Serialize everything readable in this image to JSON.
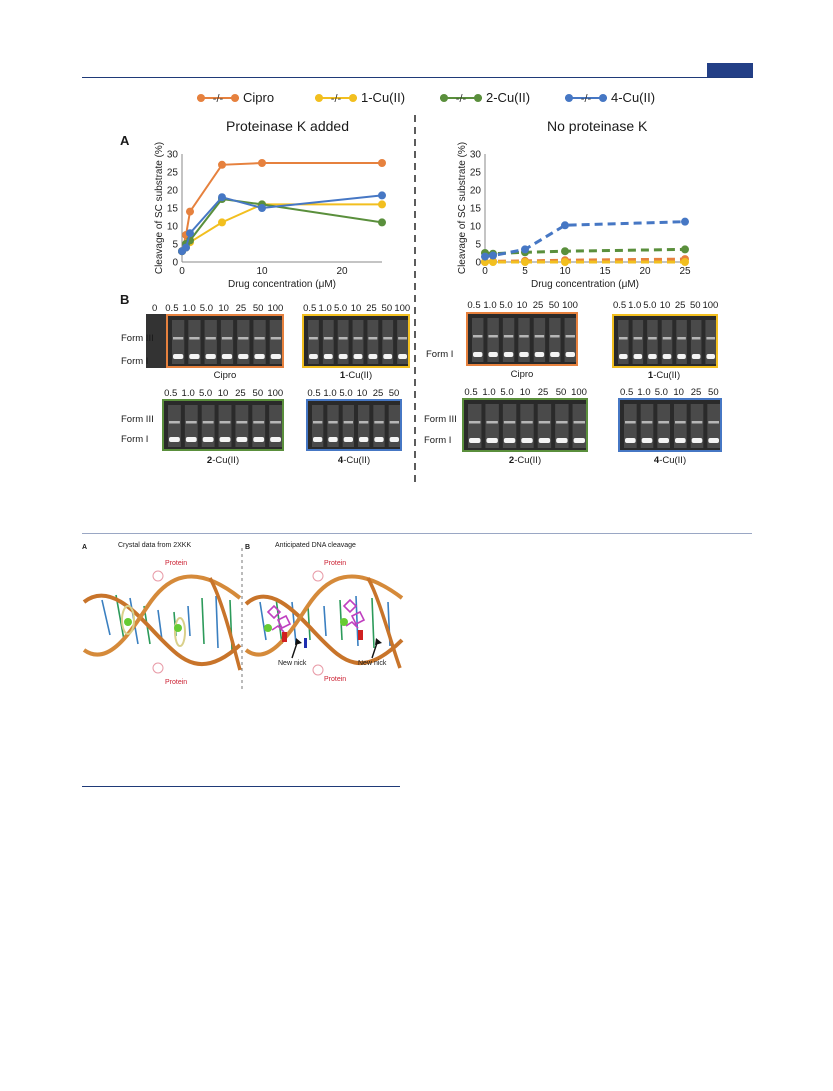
{
  "legend": [
    {
      "name": "Cipro",
      "color": "#e6813e"
    },
    {
      "name": "1-Cu(II)",
      "color": "#f2bf1f"
    },
    {
      "name": "2-Cu(II)",
      "color": "#5a8f3c"
    },
    {
      "name": "4-Cu(II)",
      "color": "#4677c4"
    }
  ],
  "legend_marker": "-/-",
  "panelA": {
    "letter": "A",
    "left_title": "Proteinase K added",
    "right_title": "No proteinase K"
  },
  "panelB": {
    "letter": "B"
  },
  "chart_data": [
    {
      "type": "line",
      "title": "Proteinase K added",
      "xlabel": "Drug concentration (μM)",
      "ylabel": "Cleavage of SC substrate (%)",
      "xlim": [
        0,
        25
      ],
      "ylim": [
        0,
        30
      ],
      "xticks": [
        0,
        10,
        20
      ],
      "yticks": [
        0,
        5,
        10,
        15,
        20,
        25,
        30
      ],
      "line_style": "solid",
      "series": [
        {
          "name": "Cipro",
          "color": "#e6813e",
          "x": [
            0,
            0.5,
            1,
            5,
            10,
            25
          ],
          "y": [
            3,
            7.5,
            14,
            27,
            27.5,
            27.5
          ]
        },
        {
          "name": "1-Cu(II)",
          "color": "#f2bf1f",
          "x": [
            0,
            0.5,
            1,
            5,
            10,
            25
          ],
          "y": [
            3,
            4,
            5.5,
            11,
            16,
            16
          ]
        },
        {
          "name": "2-Cu(II)",
          "color": "#5a8f3c",
          "x": [
            0,
            0.5,
            1,
            5,
            10,
            25
          ],
          "y": [
            3,
            5,
            6,
            17.5,
            16,
            11
          ]
        },
        {
          "name": "4-Cu(II)",
          "color": "#4677c4",
          "x": [
            0,
            0.5,
            1,
            5,
            10,
            25
          ],
          "y": [
            3,
            4,
            8,
            18,
            15,
            18.5
          ]
        }
      ]
    },
    {
      "type": "line",
      "title": "No proteinase K",
      "xlabel": "Drug concentration (μM)",
      "ylabel": "Cleavage of SC substrate (%)",
      "xlim": [
        0,
        25
      ],
      "ylim": [
        0,
        30
      ],
      "xticks": [
        0,
        5,
        10,
        15,
        20,
        25
      ],
      "yticks": [
        0,
        5,
        10,
        15,
        20,
        25,
        30
      ],
      "line_style": "dashed",
      "series": [
        {
          "name": "Cipro",
          "color": "#e6813e",
          "x": [
            0,
            1,
            5,
            10,
            25
          ],
          "y": [
            0,
            0.2,
            0.3,
            0.5,
            0.8
          ]
        },
        {
          "name": "1-Cu(II)",
          "color": "#f2bf1f",
          "x": [
            0,
            1,
            5,
            10,
            25
          ],
          "y": [
            0,
            0,
            0,
            0,
            0
          ]
        },
        {
          "name": "2-Cu(II)",
          "color": "#5a8f3c",
          "x": [
            0,
            1,
            5,
            10,
            25
          ],
          "y": [
            2.5,
            2.3,
            2.7,
            3,
            3.5
          ]
        },
        {
          "name": "4-Cu(II)",
          "color": "#4677c4",
          "x": [
            0,
            1,
            5,
            10,
            25
          ],
          "y": [
            1.5,
            1.8,
            3.5,
            10.2,
            11.2
          ]
        }
      ]
    }
  ],
  "gels": [
    {
      "id": "cipro-pk",
      "lanes": [
        "0",
        "0.5",
        "1.0",
        "5.0",
        "10",
        "25",
        "50",
        "100"
      ],
      "forms": [
        "Form III",
        "Form I"
      ],
      "caption_bold": "",
      "caption_rest": "Cipro",
      "border": "#e6813e"
    },
    {
      "id": "cu1-pk",
      "lanes": [
        "0.5",
        "1.0",
        "5.0",
        "10",
        "25",
        "50",
        "100"
      ],
      "forms": [],
      "caption_bold": "1",
      "caption_rest": "-Cu(II)",
      "border": "#f2bf1f"
    },
    {
      "id": "cipro-nopk",
      "lanes": [
        "0.5",
        "1.0",
        "5.0",
        "10",
        "25",
        "50",
        "100"
      ],
      "forms": [
        "Form I"
      ],
      "caption_bold": "",
      "caption_rest": "Cipro",
      "border": "#e6813e"
    },
    {
      "id": "cu1-nopk",
      "lanes": [
        "0.5",
        "1.0",
        "5.0",
        "10",
        "25",
        "50",
        "100"
      ],
      "forms": [],
      "caption_bold": "1",
      "caption_rest": "-Cu(II)",
      "border": "#f2bf1f"
    },
    {
      "id": "cu2-pk",
      "lanes": [
        "0.5",
        "1.0",
        "5.0",
        "10",
        "25",
        "50",
        "100"
      ],
      "forms": [
        "Form III",
        "Form I"
      ],
      "caption_bold": "2",
      "caption_rest": "-Cu(II)",
      "border": "#5a8f3c"
    },
    {
      "id": "cu4-pk",
      "lanes": [
        "0.5",
        "1.0",
        "5.0",
        "10",
        "25",
        "50"
      ],
      "forms": [],
      "caption_bold": "4",
      "caption_rest": "-Cu(II)",
      "border": "#4677c4"
    },
    {
      "id": "cu2-nopk",
      "lanes": [
        "0.5",
        "1.0",
        "5.0",
        "10",
        "25",
        "50",
        "100"
      ],
      "forms": [
        "Form III",
        "Form I"
      ],
      "caption_bold": "2",
      "caption_rest": "-Cu(II)",
      "border": "#5a8f3c"
    },
    {
      "id": "cu4-nopk",
      "lanes": [
        "0.5",
        "1.0",
        "5.0",
        "10",
        "25",
        "50"
      ],
      "forms": [],
      "caption_bold": "4",
      "caption_rest": "-Cu(II)",
      "border": "#4677c4"
    }
  ],
  "fig2": {
    "left_letter": "A",
    "left_title": "Crystal data from 2XKK",
    "right_letter": "B",
    "right_title": "Anticipated DNA cleavage",
    "protein": "Protein",
    "new_nick": "New nick"
  }
}
